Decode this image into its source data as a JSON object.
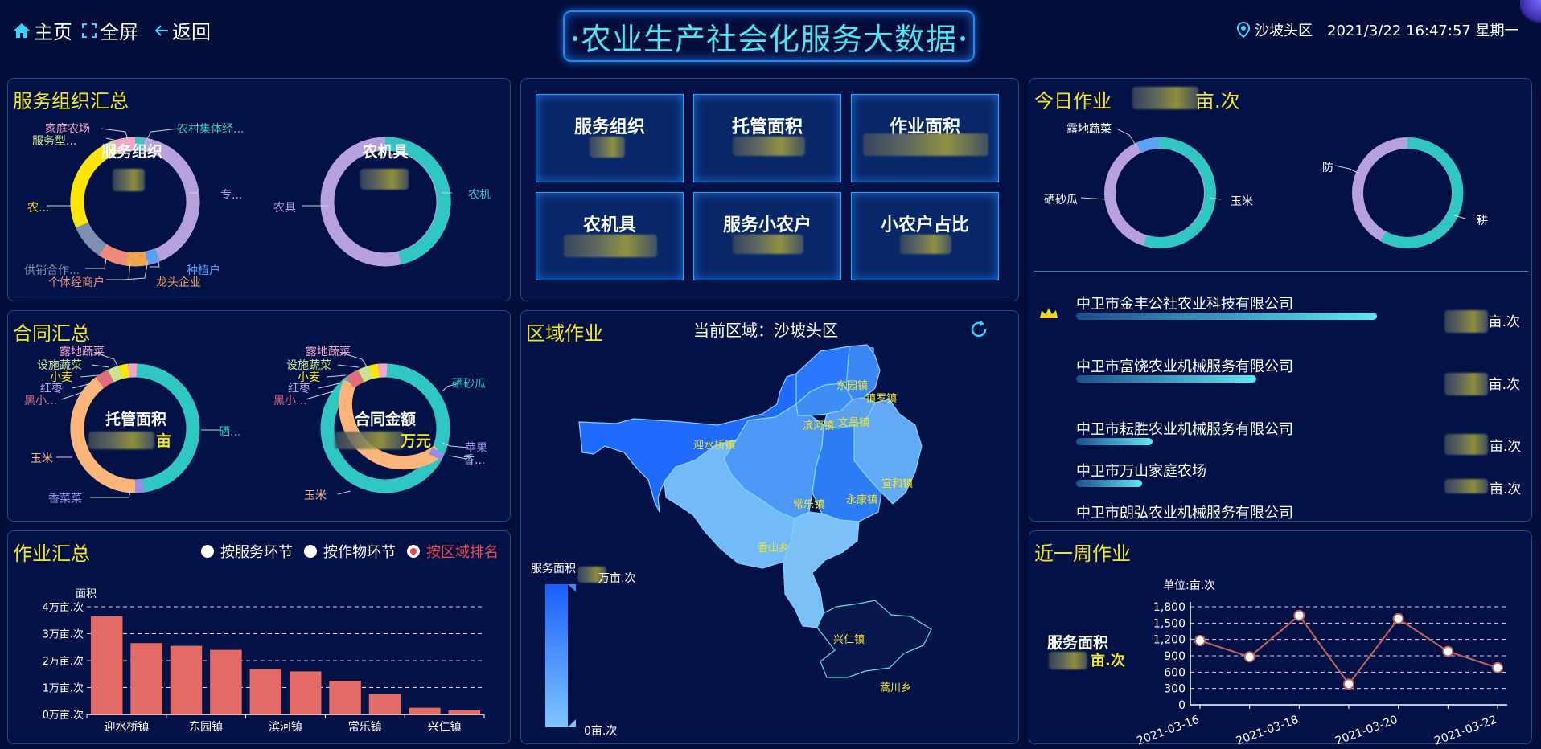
{
  "nav": {
    "home": "主页",
    "fullscreen": "全屏",
    "back": "返回"
  },
  "header": {
    "title": "农业生产社会化服务大数据",
    "location": "沙坡头区",
    "datetime": "2021/3/22 16:47:57 星期一"
  },
  "service_org": {
    "title": "服务组织汇总",
    "donut1_center": "服务组织",
    "donut1_labels": [
      "家庭农场",
      "服务型...",
      "农村集体经...",
      "专...",
      "农...",
      "供销合作...",
      "个体经商户",
      "龙头企业",
      "种植户"
    ],
    "donut2_center": "农机具",
    "donut2_labels": [
      "农机",
      "农具"
    ]
  },
  "contract": {
    "title": "合同汇总",
    "donut1_center": "托管面积",
    "donut1_unit": "亩",
    "donut1_labels": [
      "露地蔬菜",
      "设施蔬菜",
      "小麦",
      "红枣",
      "黑小...",
      "玉米",
      "香菜菜",
      "硒..."
    ],
    "donut2_center": "合同金额",
    "donut2_unit": "万元",
    "donut2_labels": [
      "露地蔬菜",
      "设施蔬菜",
      "小麦",
      "红枣",
      "黑小...",
      "玉米",
      "硒砂瓜",
      "苹果",
      "香..."
    ]
  },
  "work": {
    "title": "作业汇总",
    "radios": [
      "按服务环节",
      "按作物环节",
      "按区域排名"
    ],
    "active_radio": 2
  },
  "chart_data": [
    {
      "type": "bar",
      "ylabel": "面积",
      "categories": [
        "迎水桥镇",
        "",
        "东园镇",
        "",
        "滨河镇",
        "",
        "常乐镇",
        "",
        "兴仁镇",
        ""
      ],
      "tick_labels": [
        "迎水桥镇",
        "东园镇",
        "滨河镇",
        "常乐镇",
        "兴仁镇"
      ],
      "values": [
        36500,
        26500,
        25500,
        24000,
        17000,
        16000,
        12500,
        7500,
        2500,
        1500
      ],
      "ylim": [
        0,
        40000
      ],
      "yticks": [
        "0万亩.次",
        "1万亩.次",
        "2万亩.次",
        "3万亩.次",
        "4万亩.次"
      ],
      "color": "#e36a65"
    },
    {
      "type": "line",
      "ylabel": "单位:亩.次",
      "x": [
        "2021-03-16",
        "2021-03-17",
        "2021-03-18",
        "2021-03-19",
        "2021-03-20",
        "2021-03-21",
        "2021-03-22"
      ],
      "xtick_labels": [
        "2021-03-16",
        "2021-03-18",
        "2021-03-20",
        "2021-03-22"
      ],
      "values": [
        1180,
        880,
        1640,
        380,
        1580,
        980,
        680
      ],
      "ylim": [
        0,
        1800
      ],
      "yticks": [
        "0",
        "300",
        "600",
        "900",
        "1,200",
        "1,500",
        "1,800"
      ],
      "color": "#c8605a"
    }
  ],
  "stats": [
    {
      "label": "服务组织"
    },
    {
      "label": "托管面积"
    },
    {
      "label": "作业面积"
    },
    {
      "label": "农机具"
    },
    {
      "label": "服务小农户"
    },
    {
      "label": "小农户占比"
    }
  ],
  "region": {
    "title": "区域作业",
    "current_label": "当前区域：沙坡头区",
    "legend_title": "服务面积",
    "legend_unit": "万亩.次",
    "legend_min": "0亩.次",
    "towns": [
      "东园镇",
      "镇罗镇",
      "迎水桥镇",
      "滨河镇",
      "文昌镇",
      "宣和镇",
      "常乐镇",
      "永康镇",
      "香山乡",
      "兴仁镇",
      "蒿川乡"
    ]
  },
  "today": {
    "title": "今日作业",
    "unit": "亩.次",
    "donut1_labels": [
      "露地蔬菜",
      "硒砂瓜",
      "玉米"
    ],
    "donut2_labels": [
      "防",
      "耕"
    ],
    "rank": [
      {
        "name": "中卫市金丰公社农业科技有限公司",
        "unit": "亩.次",
        "pct": 0.87
      },
      {
        "name": "中卫市富饶农业机械服务有限公司",
        "unit": "亩.次",
        "pct": 0.52
      },
      {
        "name": "中卫市耘胜农业机械服务有限公司",
        "unit": "亩.次",
        "pct": 0.22
      },
      {
        "name": "中卫市万山家庭农场",
        "unit": "亩.次",
        "pct": 0.19
      },
      {
        "name": "中卫市朗弘农业机械服务有限公司",
        "unit": "",
        "pct": 0.0
      }
    ]
  },
  "week": {
    "title": "近一周作业",
    "side_label": "服务面积",
    "side_unit": "亩.次"
  }
}
